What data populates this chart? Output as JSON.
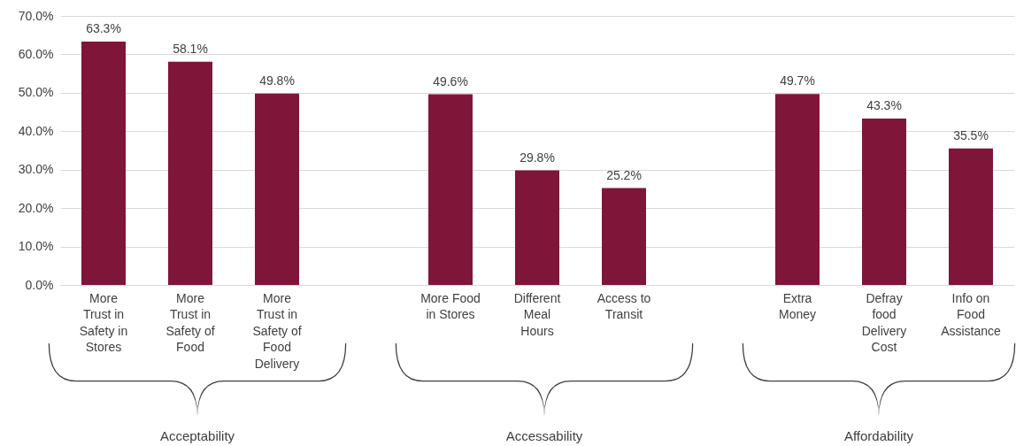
{
  "chart_data": {
    "type": "bar",
    "categories": [
      "More Trust in Safety in Stores",
      "More Trust in Safety of Food",
      "More Trust in Safety of Food Delivery",
      null,
      "More Food in Stores",
      "Different Meal Hours",
      "Access to Transit",
      null,
      "Extra Money",
      "Defray food Delivery Cost",
      "Info on Food Assistance"
    ],
    "values": [
      63.3,
      58.1,
      49.8,
      null,
      49.6,
      29.8,
      25.2,
      null,
      49.7,
      43.3,
      35.5
    ],
    "value_labels": [
      "63.3%",
      "58.1%",
      "49.8%",
      null,
      "49.6%",
      "29.8%",
      "25.2%",
      null,
      "49.7%",
      "43.3%",
      "35.5%"
    ],
    "color": "#7f1538",
    "ylim": [
      0,
      70
    ],
    "yticks": [
      {
        "value": 0,
        "label": "0.0%"
      },
      {
        "value": 10,
        "label": "10.0%"
      },
      {
        "value": 20,
        "label": "20.0%"
      },
      {
        "value": 30,
        "label": "30.0%"
      },
      {
        "value": 40,
        "label": "40.0%"
      },
      {
        "value": 50,
        "label": "50.0%"
      },
      {
        "value": 60,
        "label": "60.0%"
      },
      {
        "value": 70,
        "label": "70.0%"
      }
    ],
    "grid": "y",
    "annotations": [
      "Acceptability",
      "Accessability",
      "Affordability"
    ]
  }
}
